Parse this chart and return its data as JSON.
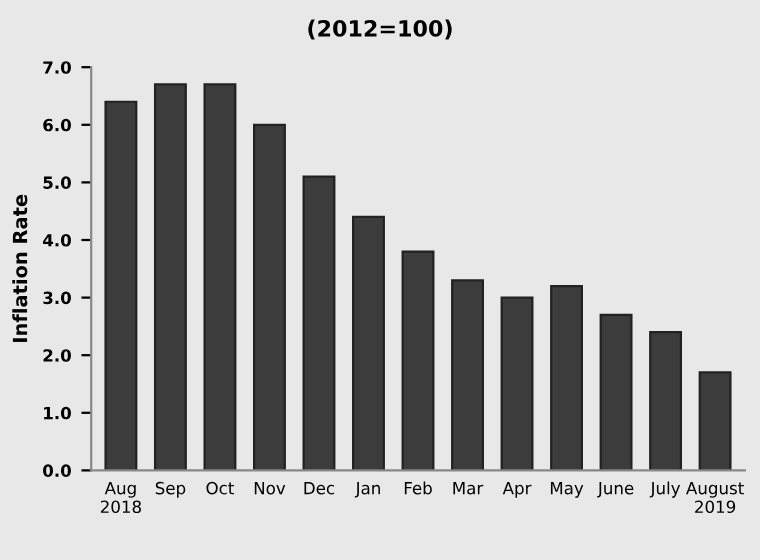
{
  "chart_data": {
    "type": "bar",
    "title": "(2012=100)",
    "ylabel": "Inflation Rate",
    "categories": [
      "Aug\n2018",
      "Sep",
      "Oct",
      "Nov",
      "Dec",
      "Jan",
      "Feb",
      "Mar",
      "Apr",
      "May",
      "June",
      "July",
      "August\n2019"
    ],
    "values": [
      6.4,
      6.7,
      6.7,
      6.0,
      5.1,
      4.4,
      3.8,
      3.3,
      3.0,
      3.2,
      2.7,
      2.4,
      1.7
    ],
    "color": "#3c3c3c",
    "ylim": [
      0,
      7
    ],
    "yticks": [
      {
        "value": 0,
        "label": "0.0"
      },
      {
        "value": 1,
        "label": "1.0"
      },
      {
        "value": 2,
        "label": "2.0"
      },
      {
        "value": 3,
        "label": "3.0"
      },
      {
        "value": 4,
        "label": "4.0"
      },
      {
        "value": 5,
        "label": "5.0"
      },
      {
        "value": 6,
        "label": "6.0"
      },
      {
        "value": 7,
        "label": "7.0"
      }
    ],
    "grid": false,
    "legend": false
  }
}
